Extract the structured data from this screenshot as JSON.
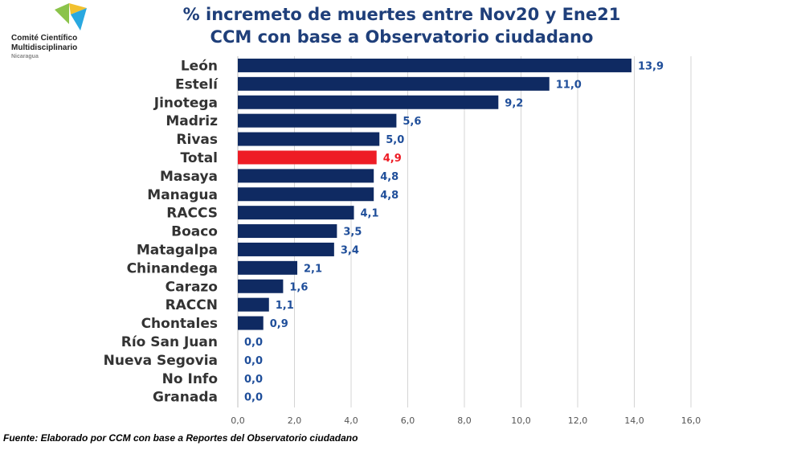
{
  "org": {
    "line1": "Comité Científico",
    "line2": "Multidisciplinario",
    "line3": "Nicaragua"
  },
  "title_line1": "% incremeto de muertes entre Nov20 y Ene21",
  "title_line2": "CCM con base a Observatorio ciudadano",
  "source": "Fuente:  Elaborado por CCM con base a Reportes del Observatorio ciudadano",
  "colors": {
    "bar": "#0f2a62",
    "highlight": "#ee1c25",
    "label": "#1f4e9a",
    "title": "#1f3f7a"
  },
  "chart_data": {
    "type": "bar",
    "orientation": "horizontal",
    "categories": [
      "León",
      "Estelí",
      "Jinotega",
      "Madriz",
      "Rivas",
      "Total",
      "Masaya",
      "Managua",
      "RACCS",
      "Boaco",
      "Matagalpa",
      "Chinandega",
      "Carazo",
      "RACCN",
      "Chontales",
      "Río San Juan",
      "Nueva Segovia",
      "No Info",
      "Granada"
    ],
    "values": [
      13.9,
      11.0,
      9.2,
      5.6,
      5.0,
      4.9,
      4.8,
      4.8,
      4.1,
      3.5,
      3.4,
      2.1,
      1.6,
      1.1,
      0.9,
      0.0,
      0.0,
      0.0,
      0.0
    ],
    "value_labels": [
      "13,9",
      "11,0",
      "9,2",
      "5,6",
      "5,0",
      "4,9",
      "4,8",
      "4,8",
      "4,1",
      "3,5",
      "3,4",
      "2,1",
      "1,6",
      "1,1",
      "0,9",
      "0,0",
      "0,0",
      "0,0",
      "0,0"
    ],
    "highlight_category": "Total",
    "xlim": [
      0,
      16
    ],
    "x_ticks": [
      "0,0",
      "2,0",
      "4,0",
      "6,0",
      "8,0",
      "10,0",
      "12,0",
      "14,0",
      "16,0"
    ],
    "grid": true,
    "legend": "none"
  }
}
